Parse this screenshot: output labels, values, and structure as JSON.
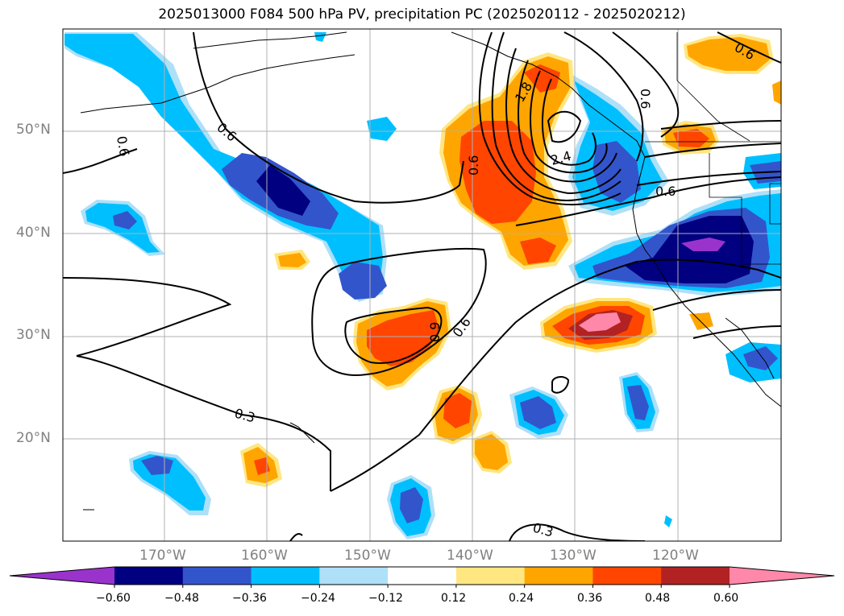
{
  "title": "2025013000 F084 500 hPa PV, precipitation PC (2025020112 - 2025020212)",
  "lat_labels": [
    "50°N",
    "40°N",
    "30°N",
    "20°N"
  ],
  "lon_labels": [
    "170°W",
    "160°W",
    "150°W",
    "140°W",
    "130°W",
    "120°W"
  ],
  "contour_labels": [
    "0.6",
    "0.6",
    "0.6",
    "0.6",
    "1.8",
    "2.4",
    "0.9",
    "0.6",
    "0.3",
    "0.3",
    "0.6",
    "0.6"
  ],
  "colorbar": {
    "ticks": [
      "−0.60",
      "−0.48",
      "−0.36",
      "−0.24",
      "−0.12",
      "0.12",
      "0.24",
      "0.36",
      "0.48",
      "0.60"
    ],
    "colors": [
      "#9933cc",
      "#000080",
      "#3355cc",
      "#00bfff",
      "#aee0f8",
      "#ffffff",
      "#ffe680",
      "#ffa500",
      "#ff4500",
      "#b22222",
      "#ff88aa"
    ]
  }
}
